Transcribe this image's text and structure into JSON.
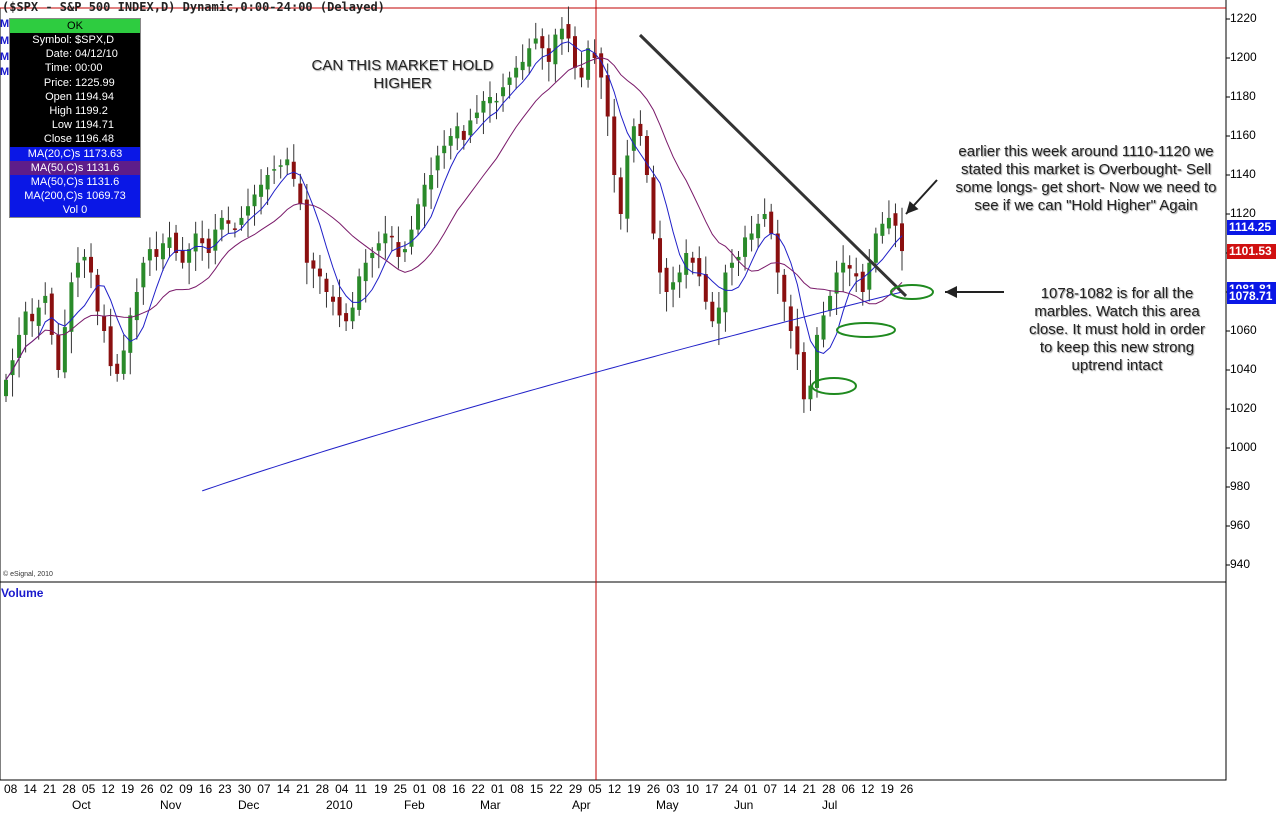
{
  "header": {
    "title": "($SPX - S&P 500 INDEX,D) Dynamic,0:00-24:00 (Delayed)"
  },
  "info_box": {
    "status": "OK",
    "rows": [
      {
        "k": "Symbol:",
        "v": "$SPX,D"
      },
      {
        "k": "Date:",
        "v": "04/12/10"
      },
      {
        "k": "Time:",
        "v": "00:00"
      },
      {
        "k": "Price:",
        "v": "1225.99"
      },
      {
        "k": "Open",
        "v": "1194.94"
      },
      {
        "k": "High",
        "v": "1199.2"
      },
      {
        "k": "Low",
        "v": "1194.71"
      },
      {
        "k": "Close",
        "v": "1196.48"
      }
    ],
    "ma_rows": [
      "MA(20,C)s 1173.63",
      "MA(50,C)s 1131.6",
      "MA(50,C)s 1131.6",
      "MA(200,C)s 1069.73"
    ],
    "vol": "Vol 0"
  },
  "side_marks": [
    "M",
    "M",
    "M",
    "M"
  ],
  "annotations": {
    "title_note": "CAN THIS MARKET HOLD HIGHER",
    "note_overbought": "earlier this week around 1110-1120 we stated this market is Overbought- Sell some longs- get short- Now we need to see if we can \"Hold Higher\" Again",
    "note_marbles": "1078-1082 is for all the marbles.  Watch this area close.  It must hold in order to keep this new strong uptrend intact"
  },
  "volume_label": "Volume",
  "copyright": "© eSignal, 2010",
  "price_tags": [
    {
      "text": "1114.25",
      "color": "#0a17e6"
    },
    {
      "text": "1101.53",
      "color": "#d01010"
    },
    {
      "text": "1081.81",
      "color": "#0a17e6"
    },
    {
      "text": "1078.71",
      "color": "#0a17e6"
    }
  ],
  "colors": {
    "up_candle": "#2a8a2a",
    "down_candle": "#8a1010",
    "ma20": "#2020c8",
    "ma50": "#7a1a6a",
    "ma200": "#2020c8",
    "trendline": "#333333",
    "circle": "#1f8a1f",
    "cursor": "#c00000"
  },
  "chart_data": {
    "type": "candlestick",
    "title": "($SPX - S&P 500 INDEX,D) Dynamic,0:00-24:00 (Delayed)",
    "yticks": [
      1220,
      1200,
      1180,
      1160,
      1140,
      1120,
      1100,
      1080,
      1060,
      1040,
      1020,
      1000,
      980,
      960,
      940
    ],
    "ylim": [
      930,
      1225
    ],
    "x_day_labels": [
      "08",
      "14",
      "21",
      "28",
      "05",
      "12",
      "19",
      "26",
      "02",
      "09",
      "16",
      "23",
      "30",
      "07",
      "14",
      "21",
      "28",
      "04",
      "11",
      "19",
      "25",
      "01",
      "08",
      "16",
      "22",
      "01",
      "08",
      "15",
      "22",
      "29",
      "05",
      "12",
      "19",
      "26",
      "03",
      "10",
      "17",
      "24",
      "01",
      "07",
      "14",
      "21",
      "28",
      "06",
      "12",
      "19",
      "26"
    ],
    "x_month_labels": [
      "Oct",
      "Nov",
      "Dec",
      "2010",
      "Feb",
      "Mar",
      "Apr",
      "May",
      "Jun",
      "Jul"
    ],
    "close_series": [
      1035,
      1045,
      1058,
      1070,
      1065,
      1072,
      1078,
      1058,
      1040,
      1062,
      1085,
      1095,
      1098,
      1090,
      1070,
      1060,
      1042,
      1038,
      1050,
      1068,
      1080,
      1095,
      1102,
      1098,
      1105,
      1108,
      1100,
      1095,
      1102,
      1110,
      1105,
      1100,
      1112,
      1118,
      1115,
      1112,
      1118,
      1124,
      1130,
      1135,
      1140,
      1143,
      1145,
      1148,
      1138,
      1125,
      1095,
      1092,
      1088,
      1080,
      1075,
      1068,
      1065,
      1072,
      1088,
      1095,
      1100,
      1105,
      1110,
      1108,
      1098,
      1102,
      1112,
      1125,
      1135,
      1140,
      1150,
      1155,
      1160,
      1165,
      1158,
      1168,
      1172,
      1178,
      1180,
      1178,
      1185,
      1190,
      1195,
      1198,
      1205,
      1210,
      1205,
      1198,
      1212,
      1215,
      1210,
      1195,
      1190,
      1205,
      1200,
      1190,
      1170,
      1140,
      1120,
      1150,
      1165,
      1160,
      1140,
      1110,
      1090,
      1080,
      1085,
      1090,
      1100,
      1095,
      1088,
      1075,
      1065,
      1072,
      1090,
      1095,
      1098,
      1108,
      1110,
      1115,
      1120,
      1110,
      1090,
      1075,
      1060,
      1048,
      1025,
      1032,
      1058,
      1068,
      1078,
      1090,
      1095,
      1092,
      1088,
      1080,
      1095,
      1110,
      1115,
      1118,
      1114,
      1101
    ],
    "ma20_at_end": 1081.81,
    "ma50_at_end": 1114.25,
    "ma200_at_end": 1078.71,
    "resistance_line": {
      "from": [
        "Apr 23",
        1216
      ],
      "to": [
        "Jul 30",
        1078
      ]
    },
    "support_zones": [
      1080,
      1062,
      1032
    ],
    "grid": false
  }
}
